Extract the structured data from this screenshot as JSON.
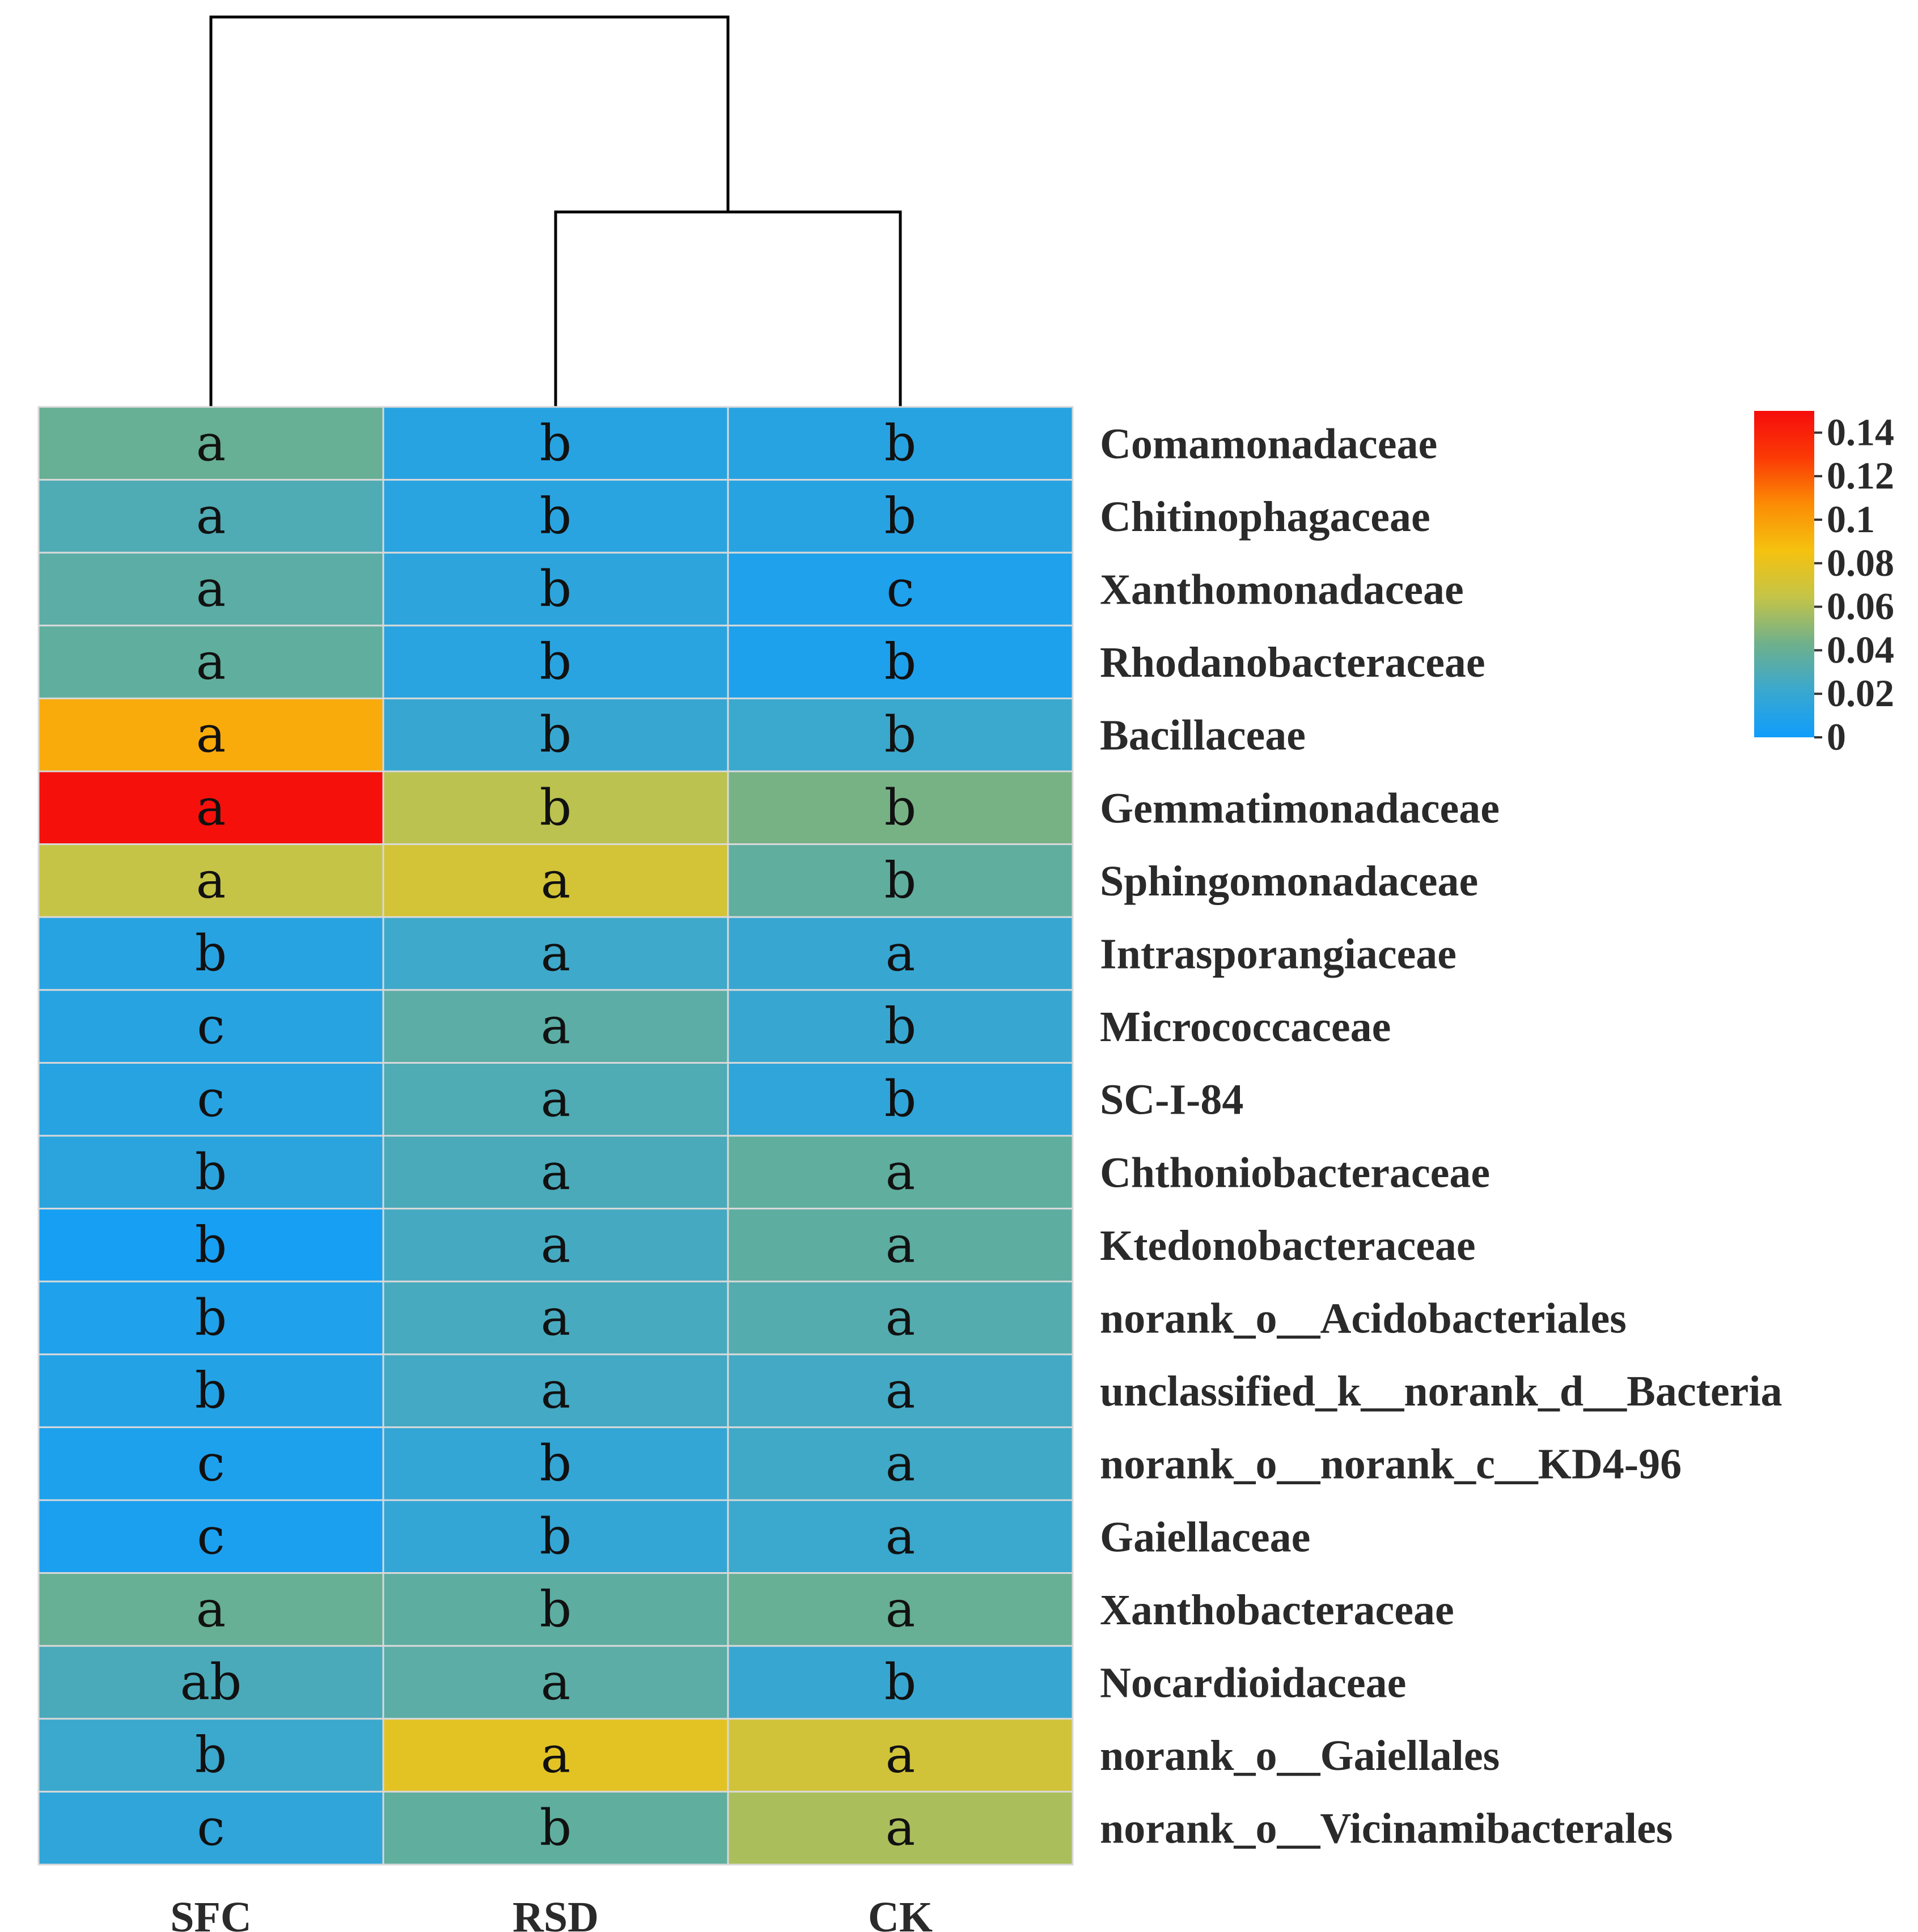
{
  "chart_data": {
    "type": "heatmap",
    "columns": [
      "SFC",
      "RSD",
      "CK"
    ],
    "rows": [
      "Comamonadaceae",
      "Chitinophagaceae",
      "Xanthomonadaceae",
      "Rhodanobacteraceae",
      "Bacillaceae",
      "Gemmatimonadaceae",
      "Sphingomonadaceae",
      "Intrasporangiaceae",
      "Micrococcaceae",
      "SC-I-84",
      "Chthoniobacteraceae",
      "Ktedonobacteraceae",
      "norank_o__Acidobacteriales",
      "unclassified_k__norank_d__Bacteria",
      "norank_o__norank_c__KD4-96",
      "Gaiellaceae",
      "Xanthobacteraceae",
      "Nocardioidaceae",
      "norank_o__Gaiellales",
      "norank_o__Vicinamibacterales"
    ],
    "values": [
      [
        0.04,
        0.012,
        0.012
      ],
      [
        0.03,
        0.013,
        0.012
      ],
      [
        0.035,
        0.015,
        0.008
      ],
      [
        0.037,
        0.013,
        0.007
      ],
      [
        0.095,
        0.02,
        0.022
      ],
      [
        0.148,
        0.062,
        0.045
      ],
      [
        0.065,
        0.071,
        0.037
      ],
      [
        0.012,
        0.023,
        0.02
      ],
      [
        0.012,
        0.035,
        0.02
      ],
      [
        0.012,
        0.03,
        0.016
      ],
      [
        0.014,
        0.028,
        0.037
      ],
      [
        0.004,
        0.026,
        0.036
      ],
      [
        0.008,
        0.027,
        0.032
      ],
      [
        0.01,
        0.025,
        0.025
      ],
      [
        0.007,
        0.018,
        0.024
      ],
      [
        0.006,
        0.018,
        0.022
      ],
      [
        0.04,
        0.036,
        0.04
      ],
      [
        0.028,
        0.035,
        0.02
      ],
      [
        0.022,
        0.078,
        0.07
      ],
      [
        0.016,
        0.037,
        0.058
      ]
    ],
    "letters": [
      [
        "a",
        "b",
        "b"
      ],
      [
        "a",
        "b",
        "b"
      ],
      [
        "a",
        "b",
        "c"
      ],
      [
        "a",
        "b",
        "b"
      ],
      [
        "a",
        "b",
        "b"
      ],
      [
        "a",
        "b",
        "b"
      ],
      [
        "a",
        "a",
        "b"
      ],
      [
        "b",
        "a",
        "a"
      ],
      [
        "c",
        "a",
        "b"
      ],
      [
        "c",
        "a",
        "b"
      ],
      [
        "b",
        "a",
        "a"
      ],
      [
        "b",
        "a",
        "a"
      ],
      [
        "b",
        "a",
        "a"
      ],
      [
        "b",
        "a",
        "a"
      ],
      [
        "c",
        "b",
        "a"
      ],
      [
        "c",
        "b",
        "a"
      ],
      [
        "a",
        "b",
        "a"
      ],
      [
        "ab",
        "a",
        "b"
      ],
      [
        "b",
        "a",
        "a"
      ],
      [
        "c",
        "b",
        "a"
      ]
    ],
    "colorbar": {
      "range": [
        0,
        0.15
      ],
      "ticks": [
        0,
        0.02,
        0.04,
        0.06,
        0.08,
        0.1,
        0.12,
        0.14
      ],
      "tick_labels": [
        "0",
        "0.02",
        "0.04",
        "0.06",
        "0.08",
        "0.1",
        "0.12",
        "0.14"
      ],
      "colors": [
        "#0f9dfb",
        "#3aa8cf",
        "#6eb08c",
        "#c4c448",
        "#f5c20f",
        "#fb8c05",
        "#fb3a05",
        "#f60c0c"
      ]
    },
    "dendrogram": {
      "leaves": [
        "SFC",
        "RSD",
        "CK"
      ],
      "merges": [
        {
          "left": "RSD",
          "right": "CK",
          "height": 0.5
        },
        {
          "left": "SFC",
          "right": "RSD+CK",
          "height": 1.0
        }
      ]
    }
  }
}
